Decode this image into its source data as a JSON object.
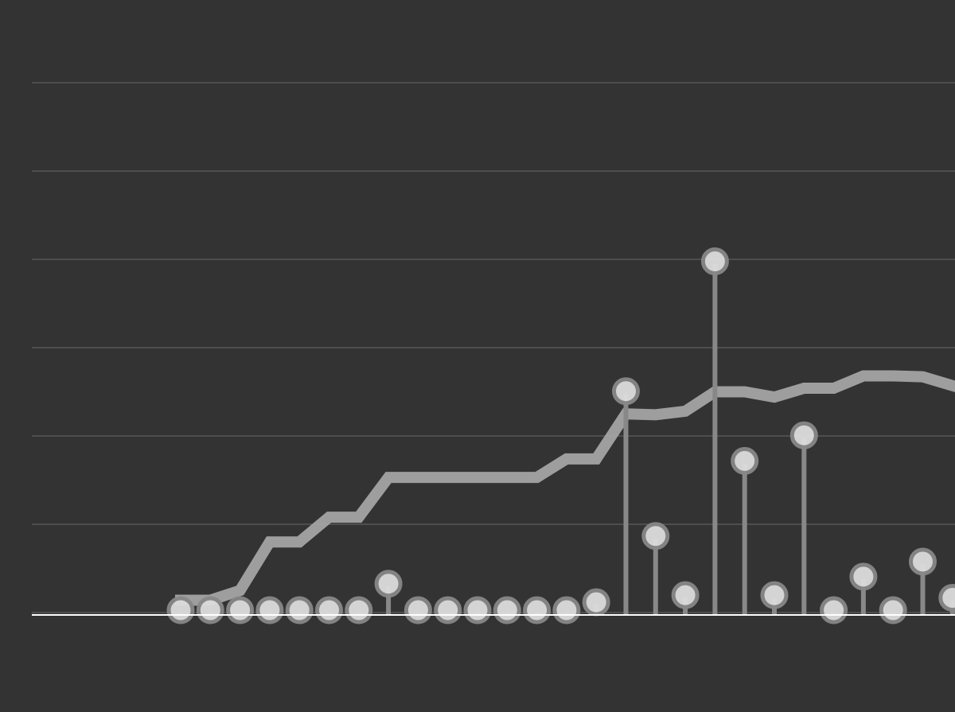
{
  "chart_data": {
    "type": "lollipop",
    "categories": [
      null,
      null,
      null,
      null,
      null,
      null,
      null,
      null,
      null,
      null,
      null,
      null,
      null,
      null,
      null,
      null,
      null,
      null,
      null,
      null,
      null,
      null,
      null,
      null,
      null,
      null,
      null
    ],
    "series": [
      {
        "type": "lollipop",
        "color": "#dddddd",
        "stem_color": "#888888",
        "values": [
          0,
          0,
          0,
          0,
          0,
          0,
          0,
          0.3,
          0,
          0,
          0,
          0,
          0,
          0,
          0.09,
          2.48,
          0.84,
          0.17,
          3.95,
          1.69,
          0.17,
          1.98,
          0,
          0.38,
          0,
          0.55,
          0.14
        ]
      },
      {
        "type": "line",
        "color": "#aaaaaa",
        "values": [
          0.14,
          0.14,
          0.25,
          0.8,
          0.8,
          1.08,
          1.08,
          1.53,
          1.53,
          1.53,
          1.53,
          1.53,
          1.53,
          1.74,
          1.74,
          2.25,
          2.24,
          2.28,
          2.5,
          2.5,
          2.44,
          2.54,
          2.54,
          2.68,
          2.68,
          2.67,
          2.57
        ]
      }
    ],
    "ylim": [
      0,
      6
    ],
    "yticks": [
      0,
      1,
      2,
      3,
      4,
      5,
      6
    ],
    "grid": true
  }
}
